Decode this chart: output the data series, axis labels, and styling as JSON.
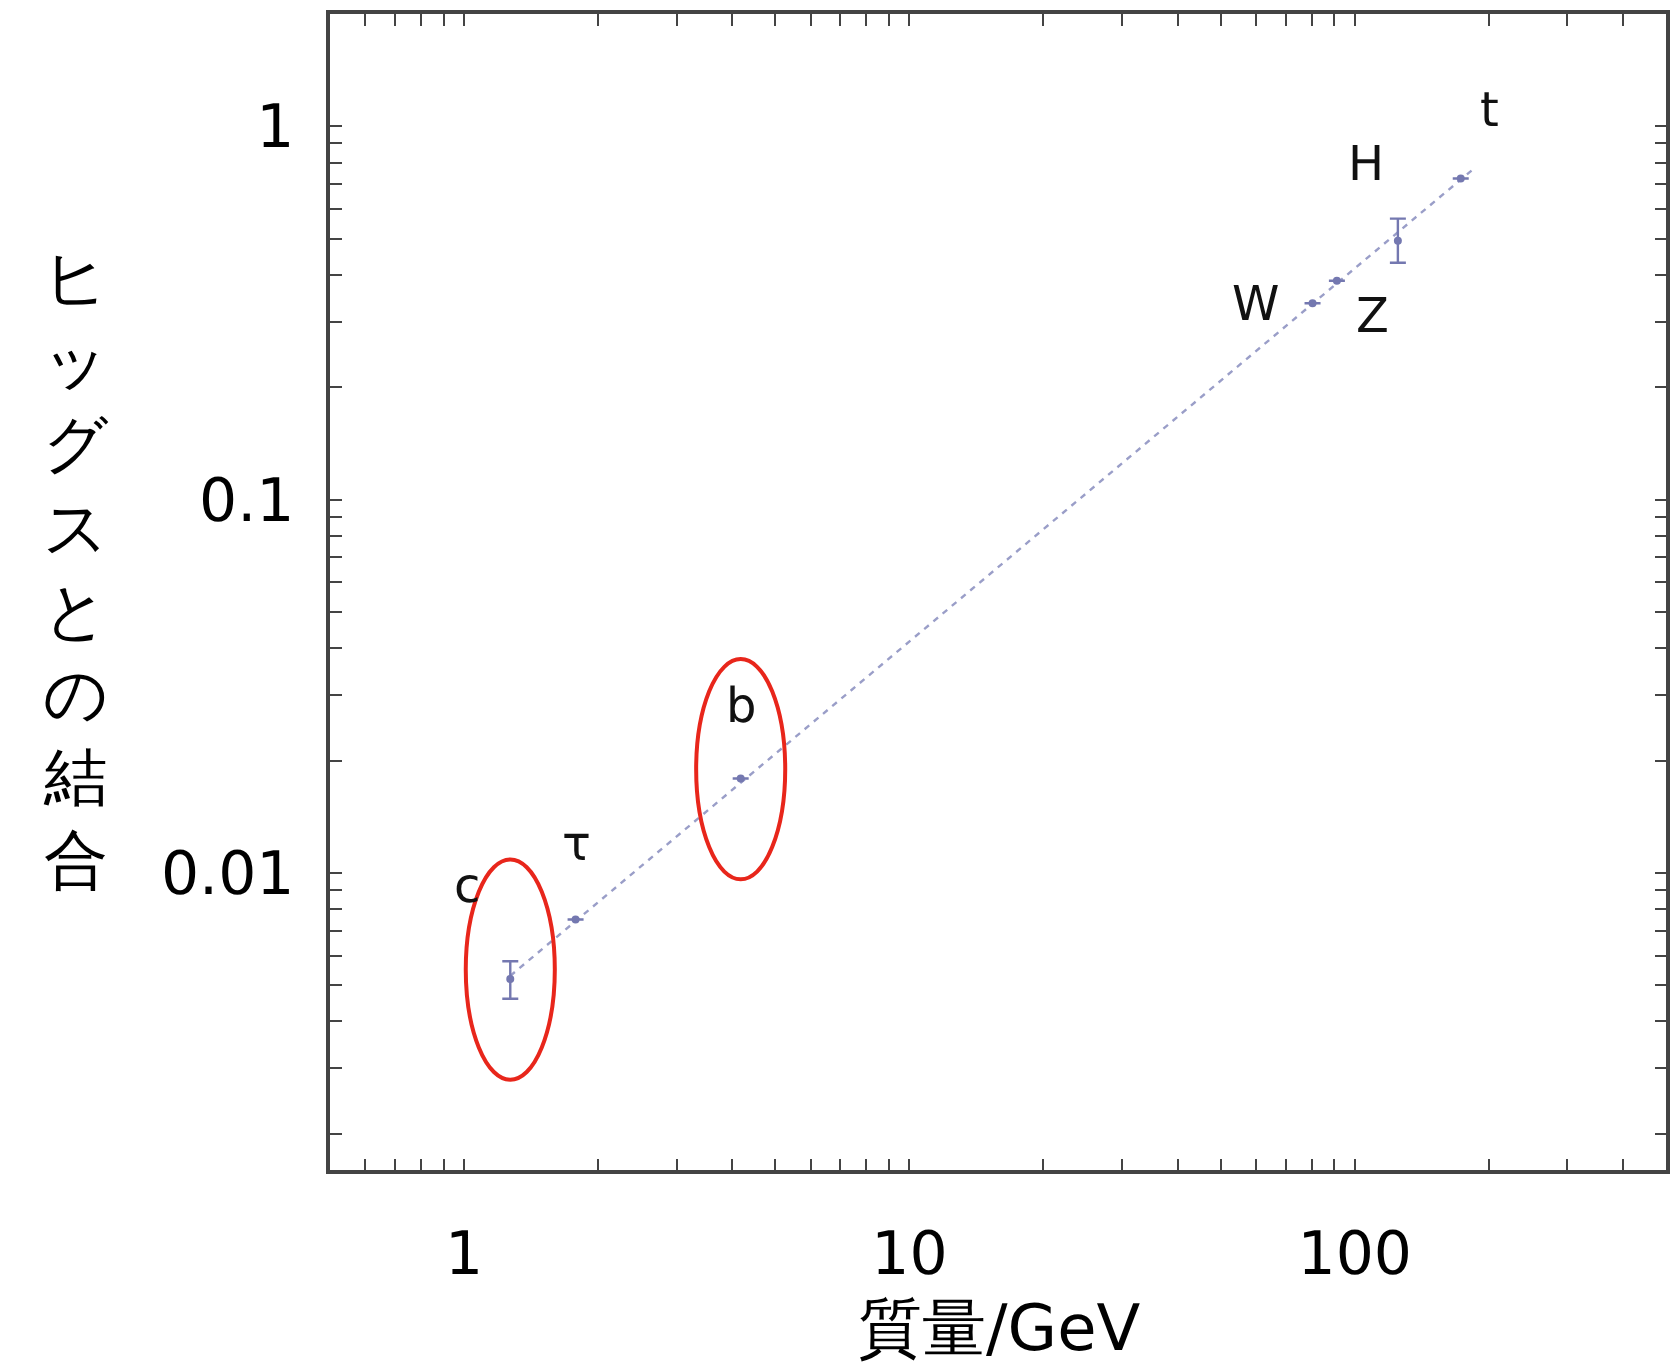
{
  "chart_data": {
    "type": "scatter",
    "xlabel": "質量/GeV",
    "ylabel": "ヒッグスとの結合",
    "log": "xy",
    "marker": "circle",
    "xlim": [
      0.5,
      500
    ],
    "ylim": [
      0.0016,
      2
    ],
    "xticks": [
      {
        "value": 0.6,
        "label": null
      },
      {
        "value": 0.7,
        "label": null
      },
      {
        "value": 0.8,
        "label": null
      },
      {
        "value": 0.9,
        "label": null
      },
      1,
      {
        "value": 2,
        "label": null
      },
      {
        "value": 3,
        "label": null
      },
      {
        "value": 4,
        "label": null
      },
      {
        "value": 5,
        "label": null
      },
      {
        "value": 6,
        "label": null
      },
      {
        "value": 7,
        "label": null
      },
      {
        "value": 8,
        "label": null
      },
      {
        "value": 9,
        "label": null
      },
      10,
      {
        "value": 20,
        "label": null
      },
      {
        "value": 30,
        "label": null
      },
      {
        "value": 40,
        "label": null
      },
      {
        "value": 50,
        "label": null
      },
      {
        "value": 60,
        "label": null
      },
      {
        "value": 70,
        "label": null
      },
      {
        "value": 80,
        "label": null
      },
      {
        "value": 90,
        "label": null
      },
      100,
      {
        "value": 200,
        "label": null
      },
      {
        "value": 300,
        "label": null
      },
      {
        "value": 400,
        "label": null
      }
    ],
    "yticks": [
      {
        "value": 0.002,
        "label": null
      },
      {
        "value": 0.003,
        "label": null
      },
      {
        "value": 0.004,
        "label": null
      },
      {
        "value": 0.005,
        "label": null
      },
      {
        "value": 0.006,
        "label": null
      },
      {
        "value": 0.007,
        "label": null
      },
      {
        "value": 0.008,
        "label": null
      },
      {
        "value": 0.009,
        "label": null
      },
      0.01,
      {
        "value": 0.02,
        "label": null
      },
      {
        "value": 0.03,
        "label": null
      },
      {
        "value": 0.04,
        "label": null
      },
      {
        "value": 0.05,
        "label": null
      },
      {
        "value": 0.06,
        "label": null
      },
      {
        "value": 0.07,
        "label": null
      },
      {
        "value": 0.08,
        "label": null
      },
      {
        "value": 0.09,
        "label": null
      },
      0.1,
      {
        "value": 0.2,
        "label": null
      },
      {
        "value": 0.3,
        "label": null
      },
      {
        "value": 0.4,
        "label": null
      },
      {
        "value": 0.5,
        "label": null
      },
      {
        "value": 0.6,
        "label": null
      },
      {
        "value": 0.7,
        "label": null
      },
      {
        "value": 0.8,
        "label": null
      },
      {
        "value": 0.9,
        "label": null
      },
      1
    ],
    "series": [
      {
        "type": "line",
        "color": "#9a9ec8",
        "line_style": "dotted",
        "marker": "none",
        "x": [
          1.27,
          185
        ],
        "values": [
          0.0053,
          0.77
        ]
      },
      {
        "color": "#7478b0",
        "x": [
          1.27,
          1.78,
          4.18,
          80.4,
          91.2,
          125,
          173
        ],
        "values": [
          0.0052,
          0.0075,
          0.0179,
          0.336,
          0.386,
          0.494,
          0.725
        ],
        "errors": [
          [
            0.0046,
            0.0058
          ],
          null,
          null,
          null,
          null,
          [
            0.431,
            0.566
          ],
          null
        ]
      }
    ],
    "annotations": [
      {
        "text": "c",
        "x": 1.27,
        "y": 0.0052
      },
      {
        "text": "τ",
        "x": 1.78,
        "y": 0.0075
      },
      {
        "text": "b",
        "x": 4.18,
        "y": 0.0179
      },
      {
        "text": "W",
        "x": 80.4,
        "y": 0.336
      },
      {
        "text": "Z",
        "x": 91.2,
        "y": 0.386
      },
      {
        "text": "H",
        "x": 125,
        "y": 0.494
      },
      {
        "text": "t",
        "x": 173,
        "y": 0.725
      }
    ]
  }
}
